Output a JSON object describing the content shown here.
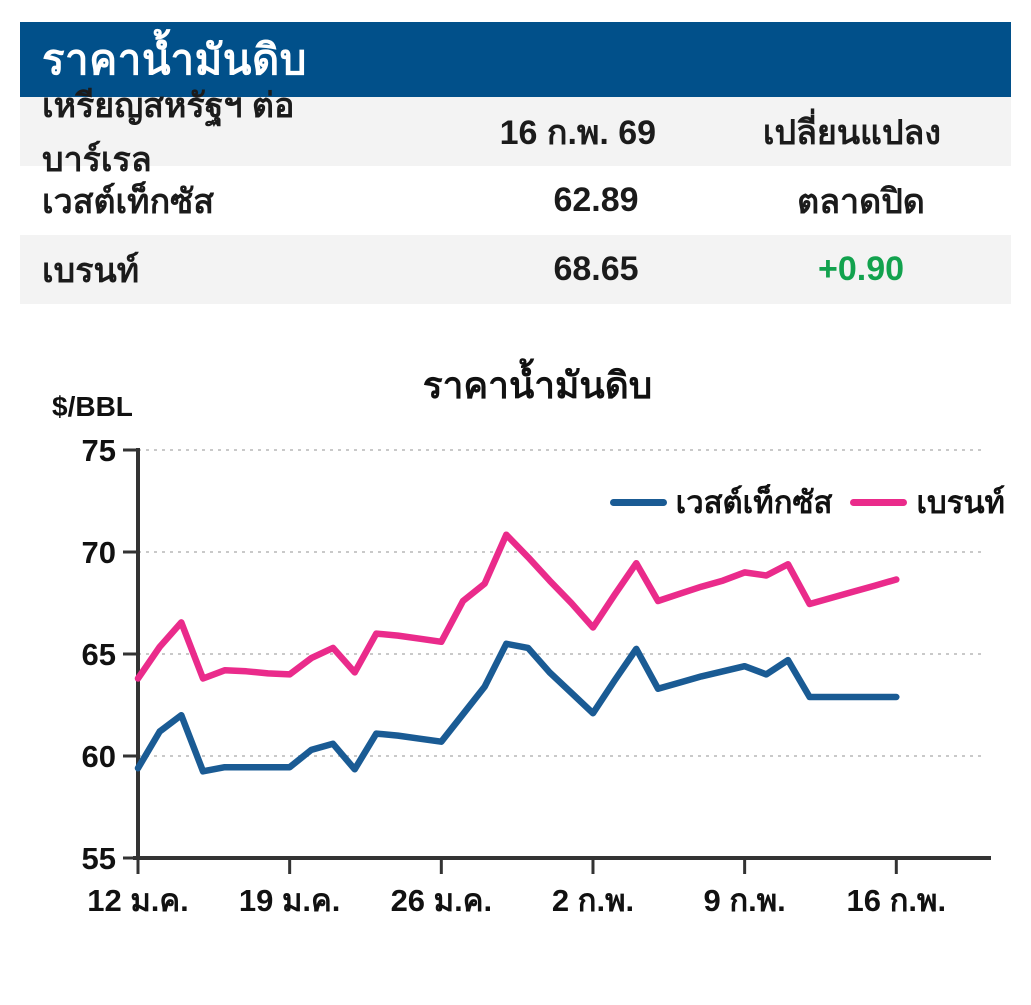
{
  "panel": {
    "title": "ราคาน้ำมันดิบ",
    "table": {
      "header": {
        "label": "เหรียญสหรัฐฯ ต่อบาร์เรล",
        "date": "16 ก.พ. 69",
        "change_col": "เปลี่ยนแปลง"
      },
      "rows": [
        {
          "name": "เวสต์เท็กซัส",
          "price": "62.89",
          "change": "ตลาดปิด",
          "change_type": "neutral"
        },
        {
          "name": "เบรนท์",
          "price": "68.65",
          "change": "+0.90",
          "change_type": "positive"
        }
      ]
    }
  },
  "chart": {
    "title": "ราคาน้ำมันดิบ",
    "unit_label": "$/BBL",
    "legend": [
      {
        "label": "เวสต์เท็กซัส",
        "color": "#1A5B94"
      },
      {
        "label": "เบรนท์",
        "color": "#EA2B8B"
      }
    ]
  },
  "chart_data": {
    "type": "line",
    "title": "ราคาน้ำมันดิบ",
    "ylabel": "$/BBL",
    "ylim": [
      55,
      75
    ],
    "y_ticks": [
      75,
      70,
      65,
      60,
      55
    ],
    "x_tick_labels": [
      "12 ม.ค.",
      "19 ม.ค.",
      "26 ม.ค.",
      "2 ก.พ.",
      "9 ก.พ.",
      "16 ก.พ."
    ],
    "x_tick_indices": [
      0,
      7,
      14,
      21,
      28,
      35
    ],
    "grid": "dotted-horizontal",
    "legend_position": "upper-right",
    "series": [
      {
        "name": "เวสต์เท็กซัส",
        "color": "#1A5B94",
        "values": [
          59.4,
          61.2,
          62.0,
          59.25,
          59.45,
          59.45,
          59.45,
          59.45,
          60.3,
          60.6,
          59.35,
          61.1,
          61.0,
          60.85,
          60.7,
          62.05,
          63.4,
          65.5,
          65.3,
          64.1,
          63.1,
          62.1,
          63.7,
          65.25,
          63.3,
          63.6,
          63.9,
          64.15,
          64.4,
          64.0,
          64.7,
          62.89,
          62.89,
          62.89,
          62.89,
          62.89
        ]
      },
      {
        "name": "เบรนท์",
        "color": "#EA2B8B",
        "values": [
          63.8,
          65.35,
          66.55,
          63.8,
          64.2,
          64.15,
          64.05,
          64.0,
          64.8,
          65.3,
          64.1,
          66.0,
          65.9,
          65.75,
          65.6,
          67.6,
          68.45,
          70.85,
          69.75,
          68.6,
          67.5,
          66.3,
          67.9,
          69.45,
          67.6,
          67.95,
          68.3,
          68.6,
          69.0,
          68.85,
          69.4,
          67.45,
          67.75,
          68.05,
          68.35,
          68.65
        ]
      }
    ]
  },
  "colors": {
    "header_bar": "#01508A",
    "row_shade": "#F3F3F3",
    "wti_line": "#1A5B94",
    "brent_line": "#EA2B8B",
    "positive_change": "#12A24E",
    "gridline": "#C9C9C9",
    "axis": "#333333"
  }
}
